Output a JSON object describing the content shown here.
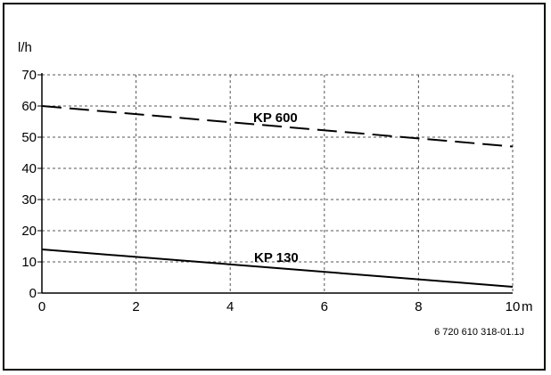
{
  "chart_data": {
    "type": "line",
    "title": "",
    "ylabel": "l/h",
    "xlabel": "",
    "x_unit": "m",
    "xlim": [
      0,
      10
    ],
    "ylim": [
      0,
      70
    ],
    "x_ticks": [
      0,
      2,
      4,
      6,
      8,
      10
    ],
    "y_ticks": [
      0,
      10,
      20,
      30,
      40,
      50,
      60,
      70
    ],
    "grid": true,
    "series": [
      {
        "name": "KP 600",
        "style": "dashed",
        "color": "#000000",
        "x": [
          0,
          10
        ],
        "y": [
          60,
          47
        ]
      },
      {
        "name": "KP 130",
        "style": "solid",
        "color": "#000000",
        "x": [
          0,
          10
        ],
        "y": [
          14,
          2
        ]
      }
    ],
    "footnote": "6 720 610 318-01.1J"
  }
}
